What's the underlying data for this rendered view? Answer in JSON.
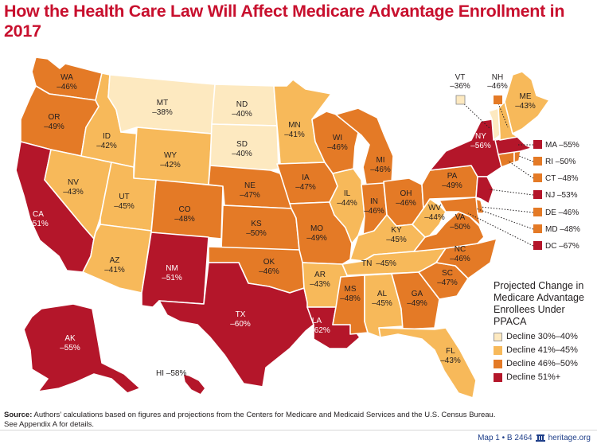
{
  "title": "How the Health Care Law Will Affect Medicare Advantage Enrollment in 2017",
  "colors": {
    "cat1": "#fde9c0",
    "cat2": "#f7b95a",
    "cat3": "#e47a26",
    "cat4": "#b4162a"
  },
  "states": {
    "WA": {
      "label": "WA",
      "value": "–46%"
    },
    "OR": {
      "label": "OR",
      "value": "–49%"
    },
    "CA": {
      "label": "CA",
      "value": "–51%"
    },
    "NV": {
      "label": "NV",
      "value": "–43%"
    },
    "ID": {
      "label": "ID",
      "value": "–42%"
    },
    "MT": {
      "label": "MT",
      "value": "–38%"
    },
    "WY": {
      "label": "WY",
      "value": "–42%"
    },
    "UT": {
      "label": "UT",
      "value": "–45%"
    },
    "AZ": {
      "label": "AZ",
      "value": "–41%"
    },
    "CO": {
      "label": "CO",
      "value": "–48%"
    },
    "NM": {
      "label": "NM",
      "value": "–51%"
    },
    "ND": {
      "label": "ND",
      "value": "–40%"
    },
    "SD": {
      "label": "SD",
      "value": "–40%"
    },
    "NE": {
      "label": "NE",
      "value": "–47%"
    },
    "KS": {
      "label": "KS",
      "value": "–50%"
    },
    "OK": {
      "label": "OK",
      "value": "–46%"
    },
    "TX": {
      "label": "TX",
      "value": "–60%"
    },
    "MN": {
      "label": "MN",
      "value": "–41%"
    },
    "IA": {
      "label": "IA",
      "value": "–47%"
    },
    "MO": {
      "label": "MO",
      "value": "–49%"
    },
    "AR": {
      "label": "AR",
      "value": "–43%"
    },
    "LA": {
      "label": "LA",
      "value": "–62%"
    },
    "WI": {
      "label": "WI",
      "value": "–46%"
    },
    "IL": {
      "label": "IL",
      "value": "–44%"
    },
    "MI": {
      "label": "MI",
      "value": "–46%"
    },
    "IN": {
      "label": "IN",
      "value": "–46%"
    },
    "OH": {
      "label": "OH",
      "value": "–46%"
    },
    "KY": {
      "label": "KY",
      "value": "–45%"
    },
    "TN": {
      "label": "TN",
      "value": "–45%"
    },
    "MS": {
      "label": "MS",
      "value": "–48%"
    },
    "AL": {
      "label": "AL",
      "value": "–45%"
    },
    "GA": {
      "label": "GA",
      "value": "–49%"
    },
    "FL": {
      "label": "FL",
      "value": "–43%"
    },
    "SC": {
      "label": "SC",
      "value": "–47%"
    },
    "NC": {
      "label": "NC",
      "value": "–46%"
    },
    "VA": {
      "label": "VA",
      "value": "–50%"
    },
    "WV": {
      "label": "WV",
      "value": "–44%"
    },
    "PA": {
      "label": "PA",
      "value": "–49%"
    },
    "NY": {
      "label": "NY",
      "value": "–56%"
    },
    "ME": {
      "label": "ME",
      "value": "–43%"
    },
    "VT": {
      "label": "VT",
      "value": "–36%"
    },
    "NH": {
      "label": "NH",
      "value": "–46%"
    },
    "AK": {
      "label": "AK",
      "value": "–55%"
    },
    "HI": {
      "label": "HI –58%"
    }
  },
  "small_states": [
    {
      "code": "MA",
      "text": "MA –55%",
      "cat": 4
    },
    {
      "code": "RI",
      "text": "RI –50%",
      "cat": 3
    },
    {
      "code": "CT",
      "text": "CT –48%",
      "cat": 3
    },
    {
      "code": "NJ",
      "text": "NJ –53%",
      "cat": 4
    },
    {
      "code": "DE",
      "text": "DE –46%",
      "cat": 3
    },
    {
      "code": "MD",
      "text": "MD –48%",
      "cat": 3
    },
    {
      "code": "DC",
      "text": "DC –67%",
      "cat": 4
    }
  ],
  "legend": {
    "title": "Projected Change in Medicare Advantage Enrollees Under PPACA",
    "items": [
      {
        "label": "Decline 30%–40%"
      },
      {
        "label": "Decline 41%–45%"
      },
      {
        "label": "Decline 46%–50%"
      },
      {
        "label": "Decline 51%+"
      }
    ]
  },
  "source": {
    "prefix": "Source:",
    "text": " Authors’ calculations based on figures and projections from the Centers for Medicare and Medicaid Services and the U.S. Census Bureau.",
    "line2": "See Appendix A for details."
  },
  "footer": {
    "map_id": "Map 1  •  B 2464",
    "site": "heritage.org"
  }
}
